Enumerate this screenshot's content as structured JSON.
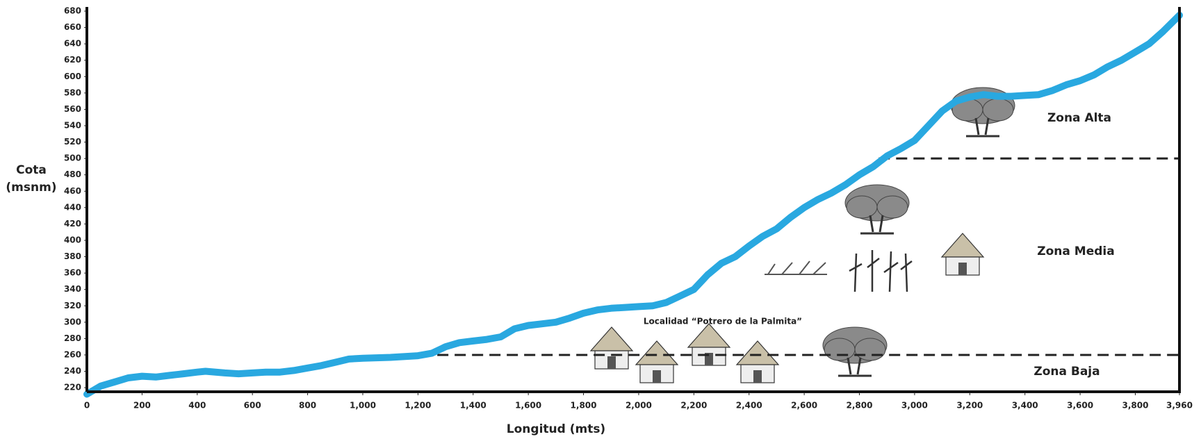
{
  "chart_data": {
    "type": "line",
    "ylabel": [
      "Cota",
      "(msnm)"
    ],
    "xlabel": "Longitud (mts)",
    "annotation": "Localidad “Potrero de la Palmita”",
    "zones": [
      "Zona Alta",
      "Zona Media",
      "Zona Baja"
    ],
    "boundaries": [
      {
        "y": 500,
        "x_start": 2870
      },
      {
        "y": 260,
        "x_start": 1270
      }
    ],
    "color": "#29a8e0",
    "grid": false,
    "x": [
      0,
      50,
      100,
      150,
      200,
      250,
      300,
      350,
      400,
      430,
      500,
      550,
      600,
      650,
      700,
      750,
      800,
      850,
      900,
      950,
      1000,
      1100,
      1200,
      1250,
      1300,
      1350,
      1400,
      1450,
      1500,
      1550,
      1600,
      1650,
      1700,
      1750,
      1800,
      1850,
      1900,
      1950,
      2000,
      2050,
      2100,
      2150,
      2200,
      2250,
      2300,
      2350,
      2400,
      2450,
      2500,
      2550,
      2600,
      2650,
      2700,
      2750,
      2800,
      2850,
      2900,
      2950,
      3000,
      3050,
      3100,
      3150,
      3200,
      3250,
      3300,
      3350,
      3400,
      3450,
      3500,
      3550,
      3600,
      3650,
      3700,
      3750,
      3800,
      3850,
      3900,
      3960
    ],
    "values": [
      212,
      222,
      227,
      232,
      234,
      233,
      235,
      237,
      239,
      240,
      238,
      237,
      238,
      239,
      239,
      241,
      244,
      247,
      251,
      255,
      256,
      257,
      259,
      262,
      270,
      275,
      277,
      279,
      282,
      292,
      296,
      298,
      300,
      305,
      311,
      315,
      317,
      318,
      319,
      320,
      324,
      332,
      340,
      358,
      372,
      380,
      393,
      405,
      414,
      428,
      440,
      450,
      458,
      468,
      480,
      490,
      503,
      512,
      522,
      540,
      558,
      570,
      575,
      578,
      576,
      576,
      577,
      578,
      583,
      590,
      595,
      602,
      612,
      620,
      630,
      640,
      655,
      675
    ],
    "xlim": [
      0,
      3960
    ],
    "ylim": [
      215,
      680
    ],
    "xticks": [
      0,
      200,
      400,
      600,
      800,
      {
        "value": 1000,
        "label": "1,000"
      },
      {
        "value": 1200,
        "label": "1,200"
      },
      {
        "value": 1400,
        "label": "1,400"
      },
      {
        "value": 1600,
        "label": "1,600"
      },
      {
        "value": 1800,
        "label": "1,800"
      },
      {
        "value": 2000,
        "label": "2,000"
      },
      {
        "value": 2200,
        "label": "2,200"
      },
      {
        "value": 2400,
        "label": "2,400"
      },
      {
        "value": 2600,
        "label": "2,600"
      },
      {
        "value": 2800,
        "label": "2,800"
      },
      {
        "value": 3000,
        "label": "3,000"
      },
      {
        "value": 3200,
        "label": "3,200"
      },
      {
        "value": 3400,
        "label": "3,400"
      },
      {
        "value": 3600,
        "label": "3,600"
      },
      {
        "value": 3800,
        "label": "3,800"
      },
      {
        "value": 3960,
        "label": "3,960"
      }
    ],
    "yticks": [
      220,
      240,
      260,
      280,
      300,
      320,
      340,
      360,
      380,
      400,
      420,
      440,
      460,
      480,
      500,
      520,
      540,
      560,
      580,
      600,
      620,
      640,
      660,
      680
    ]
  }
}
